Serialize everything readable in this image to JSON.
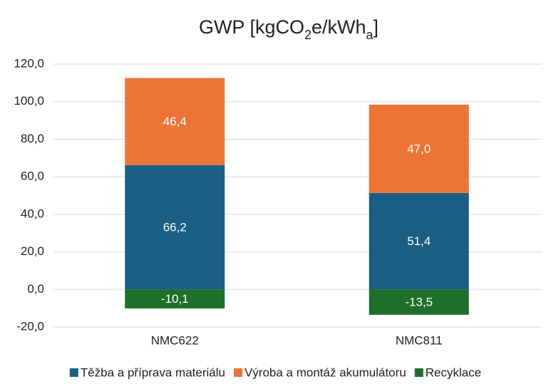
{
  "chart_data": {
    "type": "bar",
    "stacked": true,
    "title": [
      {
        "text": "GWP [kgCO"
      },
      {
        "text": "2",
        "sub": true
      },
      {
        "text": "e/kWh"
      },
      {
        "text": "a",
        "sub": true
      },
      {
        "text": "]"
      }
    ],
    "categories": [
      "NMC622",
      "NMC811"
    ],
    "series": [
      {
        "name": "Těžba a příprava materiálu",
        "color": "#1b5e83",
        "values": [
          66.2,
          51.4
        ],
        "value_labels": [
          "66,2",
          "51,4"
        ]
      },
      {
        "name": "Výroba a montáž akumulátoru",
        "color": "#ed7434",
        "values": [
          46.4,
          47.0
        ],
        "value_labels": [
          "46,4",
          "47,0"
        ]
      },
      {
        "name": "Recyklace",
        "color": "#1f6f2b",
        "values": [
          -10.1,
          -13.5
        ],
        "value_labels": [
          "-10,1",
          "-13,5"
        ]
      }
    ],
    "ylim": [
      -20,
      120
    ],
    "yticks": [
      {
        "value": -20,
        "label": "-20,0"
      },
      {
        "value": 0,
        "label": "0,0"
      },
      {
        "value": 20,
        "label": "20,0"
      },
      {
        "value": 40,
        "label": "40,0"
      },
      {
        "value": 60,
        "label": "60,0"
      },
      {
        "value": 80,
        "label": "80,0"
      },
      {
        "value": 100,
        "label": "100,0"
      },
      {
        "value": 120,
        "label": "120,0"
      }
    ],
    "grid": true,
    "legend": "bottom"
  }
}
